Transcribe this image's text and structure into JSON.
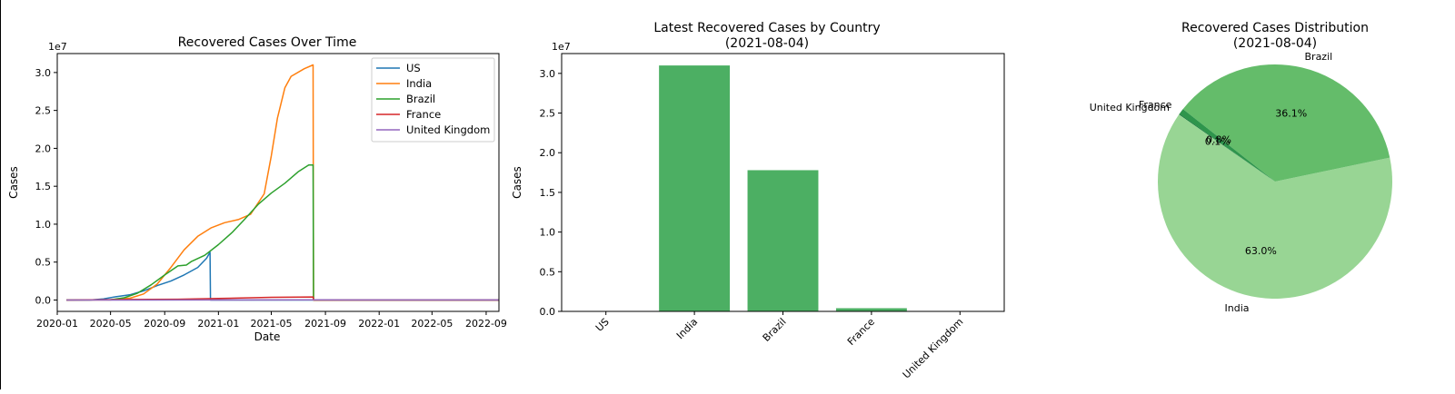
{
  "colors": {
    "US": "#1f77b4",
    "India": "#ff7f0e",
    "Brazil": "#2ca02c",
    "France": "#d62728",
    "United Kingdom": "#9467bd",
    "bar": "#4caf63"
  },
  "chart_data": [
    {
      "type": "line",
      "title": "Recovered Cases Over Time",
      "xlabel": "Date",
      "ylabel": "Cases",
      "y_offset_label": "1e7",
      "y_scale": 10000000,
      "xlim": [
        "2020-01-01",
        "2022-09-30"
      ],
      "ylim": [
        -1500000,
        32500000
      ],
      "x_ticks": [
        "2020-01",
        "2020-05",
        "2020-09",
        "2021-01",
        "2021-05",
        "2021-09",
        "2022-01",
        "2022-05",
        "2022-09"
      ],
      "y_ticks": [
        0,
        5000000,
        10000000,
        15000000,
        20000000,
        25000000,
        30000000
      ],
      "y_tick_labels": [
        "0.0",
        "0.5",
        "1.0",
        "1.5",
        "2.0",
        "2.5",
        "3.0"
      ],
      "legend_position": "top-right",
      "grid": false,
      "series": [
        {
          "name": "US",
          "points": [
            [
              "2020-01-22",
              0
            ],
            [
              "2020-03-15",
              0
            ],
            [
              "2020-04-15",
              150000
            ],
            [
              "2020-05-15",
              450000
            ],
            [
              "2020-06-15",
              700000
            ],
            [
              "2020-07-15",
              1200000
            ],
            [
              "2020-08-15",
              1900000
            ],
            [
              "2020-09-15",
              2500000
            ],
            [
              "2020-10-15",
              3300000
            ],
            [
              "2020-11-15",
              4300000
            ],
            [
              "2020-12-05",
              5500000
            ],
            [
              "2020-12-13",
              6300000
            ],
            [
              "2020-12-14",
              0
            ],
            [
              "2022-09-30",
              0
            ]
          ]
        },
        {
          "name": "India",
          "points": [
            [
              "2020-01-22",
              0
            ],
            [
              "2020-05-01",
              10000
            ],
            [
              "2020-06-15",
              250000
            ],
            [
              "2020-07-15",
              800000
            ],
            [
              "2020-08-15",
              2100000
            ],
            [
              "2020-09-15",
              4300000
            ],
            [
              "2020-10-15",
              6600000
            ],
            [
              "2020-11-15",
              8400000
            ],
            [
              "2020-12-15",
              9500000
            ],
            [
              "2021-01-15",
              10200000
            ],
            [
              "2021-02-15",
              10600000
            ],
            [
              "2021-03-15",
              11300000
            ],
            [
              "2021-04-15",
              14000000
            ],
            [
              "2021-05-01",
              19000000
            ],
            [
              "2021-05-15",
              24000000
            ],
            [
              "2021-06-01",
              28000000
            ],
            [
              "2021-06-15",
              29500000
            ],
            [
              "2021-07-15",
              30500000
            ],
            [
              "2021-08-04",
              31000000
            ],
            [
              "2021-08-05",
              0
            ],
            [
              "2022-09-30",
              0
            ]
          ]
        },
        {
          "name": "Brazil",
          "points": [
            [
              "2020-01-22",
              0
            ],
            [
              "2020-05-01",
              50000
            ],
            [
              "2020-06-01",
              300000
            ],
            [
              "2020-07-01",
              900000
            ],
            [
              "2020-08-01",
              2000000
            ],
            [
              "2020-09-01",
              3300000
            ],
            [
              "2020-10-01",
              4500000
            ],
            [
              "2020-10-20",
              4600000
            ],
            [
              "2020-11-01",
              5100000
            ],
            [
              "2020-12-01",
              5900000
            ],
            [
              "2021-01-01",
              7300000
            ],
            [
              "2021-02-01",
              8900000
            ],
            [
              "2021-03-01",
              10600000
            ],
            [
              "2021-04-01",
              12600000
            ],
            [
              "2021-05-01",
              14100000
            ],
            [
              "2021-06-01",
              15400000
            ],
            [
              "2021-07-01",
              16900000
            ],
            [
              "2021-07-25",
              17800000
            ],
            [
              "2021-08-04",
              17800000
            ],
            [
              "2021-08-05",
              0
            ],
            [
              "2022-09-30",
              0
            ]
          ]
        },
        {
          "name": "France",
          "points": [
            [
              "2020-01-22",
              0
            ],
            [
              "2020-06-01",
              70000
            ],
            [
              "2020-10-01",
              100000
            ],
            [
              "2021-01-01",
              200000
            ],
            [
              "2021-05-01",
              350000
            ],
            [
              "2021-08-04",
              400000
            ],
            [
              "2021-08-05",
              0
            ],
            [
              "2022-09-30",
              0
            ]
          ]
        },
        {
          "name": "United Kingdom",
          "points": [
            [
              "2020-01-22",
              0
            ],
            [
              "2021-08-04",
              20000
            ],
            [
              "2022-09-30",
              10000
            ]
          ]
        }
      ]
    },
    {
      "type": "bar",
      "title": "Latest Recovered Cases by Country",
      "subtitle": "(2021-08-04)",
      "xlabel": "",
      "ylabel": "Cases",
      "y_offset_label": "1e7",
      "categories": [
        "US",
        "India",
        "Brazil",
        "France",
        "United Kingdom"
      ],
      "values": [
        0,
        31000000,
        17800000,
        400000,
        20000
      ],
      "ylim": [
        0,
        32500000
      ],
      "y_ticks": [
        0,
        5000000,
        10000000,
        15000000,
        20000000,
        25000000,
        30000000
      ],
      "y_tick_labels": [
        "0.0",
        "0.5",
        "1.0",
        "1.5",
        "2.0",
        "2.5",
        "3.0"
      ],
      "grid": false
    },
    {
      "type": "pie",
      "title": "Recovered Cases Distribution",
      "subtitle": "(2021-08-04)",
      "slices": [
        {
          "label": "India",
          "value": 63.0,
          "pct_label": "63.0%",
          "color": "#98d594"
        },
        {
          "label": "Brazil",
          "value": 36.1,
          "pct_label": "36.1%",
          "color": "#64bc6a"
        },
        {
          "label": "France",
          "value": 0.8,
          "pct_label": "0.8%",
          "color": "#2e954c"
        },
        {
          "label": "United Kingdom",
          "value": 0.1,
          "pct_label": "0.1%",
          "color": "#00692c"
        }
      ],
      "start_angle_deg": 145,
      "overlapping_labels": true
    }
  ]
}
